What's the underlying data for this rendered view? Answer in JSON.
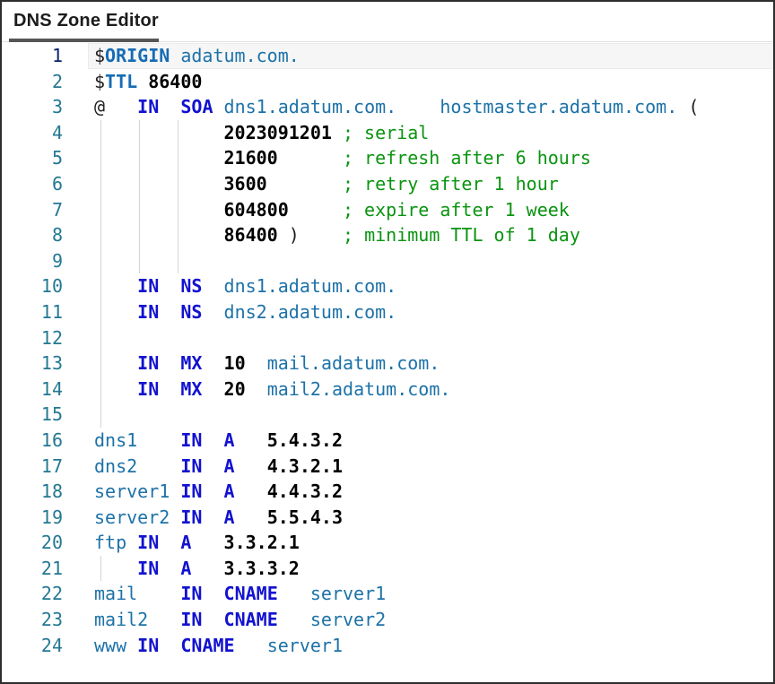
{
  "window": {
    "title": "DNS Zone Editor"
  },
  "colors": {
    "keyword": "#1212d0",
    "directive": "#166cb4",
    "domain": "#1d72a8",
    "number": "#000000",
    "comment": "#0a9410",
    "punct": "#1f1f1f",
    "line_number": "#237893",
    "active_line_number": "#0b216f",
    "indent_guide": "#d4d4d4",
    "tab_indicator": "#565656"
  },
  "editor": {
    "active_line": 1,
    "lines": [
      {
        "n": 1,
        "guides": [],
        "tokens": [
          [
            "$",
            "pun"
          ],
          [
            "ORIGIN",
            "dir"
          ],
          [
            " ",
            ""
          ],
          [
            "adatum.com.",
            "dom"
          ]
        ]
      },
      {
        "n": 2,
        "guides": [],
        "tokens": [
          [
            "$",
            "pun"
          ],
          [
            "TTL",
            "dir"
          ],
          [
            " ",
            ""
          ],
          [
            "86400",
            "num"
          ]
        ]
      },
      {
        "n": 3,
        "guides": [],
        "tokens": [
          [
            "@",
            "pun"
          ],
          [
            "   ",
            ""
          ],
          [
            "IN",
            "kw"
          ],
          [
            "  ",
            ""
          ],
          [
            "SOA",
            "kw"
          ],
          [
            " ",
            ""
          ],
          [
            "dns1.adatum.com.",
            "dom"
          ],
          [
            "    ",
            ""
          ],
          [
            "hostmaster.adatum.com.",
            "dom"
          ],
          [
            " ",
            ""
          ],
          [
            "(",
            "pun"
          ]
        ]
      },
      {
        "n": 4,
        "guides": [
          0,
          4,
          8
        ],
        "tokens": [
          [
            "            ",
            ""
          ],
          [
            "2023091201",
            "num"
          ],
          [
            " ",
            ""
          ],
          [
            "; serial",
            "com"
          ]
        ]
      },
      {
        "n": 5,
        "guides": [
          0,
          4,
          8
        ],
        "tokens": [
          [
            "            ",
            ""
          ],
          [
            "21600",
            "num"
          ],
          [
            "      ",
            ""
          ],
          [
            "; refresh after 6 hours",
            "com"
          ]
        ]
      },
      {
        "n": 6,
        "guides": [
          0,
          4,
          8
        ],
        "tokens": [
          [
            "            ",
            ""
          ],
          [
            "3600",
            "num"
          ],
          [
            "       ",
            ""
          ],
          [
            "; retry after 1 hour",
            "com"
          ]
        ]
      },
      {
        "n": 7,
        "guides": [
          0,
          4,
          8
        ],
        "tokens": [
          [
            "            ",
            ""
          ],
          [
            "604800",
            "num"
          ],
          [
            "     ",
            ""
          ],
          [
            "; expire after 1 week",
            "com"
          ]
        ]
      },
      {
        "n": 8,
        "guides": [
          0,
          4,
          8
        ],
        "tokens": [
          [
            "            ",
            ""
          ],
          [
            "86400",
            "num"
          ],
          [
            " ",
            ""
          ],
          [
            ")",
            "pun"
          ],
          [
            "    ",
            ""
          ],
          [
            "; minimum TTL of 1 day",
            "com"
          ]
        ]
      },
      {
        "n": 9,
        "guides": [
          0,
          4,
          8
        ],
        "tokens": []
      },
      {
        "n": 10,
        "guides": [
          0
        ],
        "tokens": [
          [
            "    ",
            ""
          ],
          [
            "IN",
            "kw"
          ],
          [
            "  ",
            ""
          ],
          [
            "NS",
            "kw"
          ],
          [
            "  ",
            ""
          ],
          [
            "dns1.adatum.com.",
            "dom"
          ]
        ]
      },
      {
        "n": 11,
        "guides": [
          0
        ],
        "tokens": [
          [
            "    ",
            ""
          ],
          [
            "IN",
            "kw"
          ],
          [
            "  ",
            ""
          ],
          [
            "NS",
            "kw"
          ],
          [
            "  ",
            ""
          ],
          [
            "dns2.adatum.com.",
            "dom"
          ]
        ]
      },
      {
        "n": 12,
        "guides": [
          0
        ],
        "tokens": []
      },
      {
        "n": 13,
        "guides": [
          0
        ],
        "tokens": [
          [
            "    ",
            ""
          ],
          [
            "IN",
            "kw"
          ],
          [
            "  ",
            ""
          ],
          [
            "MX",
            "kw"
          ],
          [
            "  ",
            ""
          ],
          [
            "10",
            "num"
          ],
          [
            "  ",
            ""
          ],
          [
            "mail.adatum.com.",
            "dom"
          ]
        ]
      },
      {
        "n": 14,
        "guides": [
          0
        ],
        "tokens": [
          [
            "    ",
            ""
          ],
          [
            "IN",
            "kw"
          ],
          [
            "  ",
            ""
          ],
          [
            "MX",
            "kw"
          ],
          [
            "  ",
            ""
          ],
          [
            "20",
            "num"
          ],
          [
            "  ",
            ""
          ],
          [
            "mail2.adatum.com.",
            "dom"
          ]
        ]
      },
      {
        "n": 15,
        "guides": [
          0
        ],
        "tokens": []
      },
      {
        "n": 16,
        "guides": [],
        "tokens": [
          [
            "dns1",
            "dom"
          ],
          [
            "    ",
            ""
          ],
          [
            "IN",
            "kw"
          ],
          [
            "  ",
            ""
          ],
          [
            "A",
            "kw"
          ],
          [
            "   ",
            ""
          ],
          [
            "5.4.3.2",
            "num"
          ]
        ]
      },
      {
        "n": 17,
        "guides": [],
        "tokens": [
          [
            "dns2",
            "dom"
          ],
          [
            "    ",
            ""
          ],
          [
            "IN",
            "kw"
          ],
          [
            "  ",
            ""
          ],
          [
            "A",
            "kw"
          ],
          [
            "   ",
            ""
          ],
          [
            "4.3.2.1",
            "num"
          ]
        ]
      },
      {
        "n": 18,
        "guides": [],
        "tokens": [
          [
            "server1",
            "dom"
          ],
          [
            " ",
            ""
          ],
          [
            "IN",
            "kw"
          ],
          [
            "  ",
            ""
          ],
          [
            "A",
            "kw"
          ],
          [
            "   ",
            ""
          ],
          [
            "4.4.3.2",
            "num"
          ]
        ]
      },
      {
        "n": 19,
        "guides": [],
        "tokens": [
          [
            "server2",
            "dom"
          ],
          [
            " ",
            ""
          ],
          [
            "IN",
            "kw"
          ],
          [
            "  ",
            ""
          ],
          [
            "A",
            "kw"
          ],
          [
            "   ",
            ""
          ],
          [
            "5.5.4.3",
            "num"
          ]
        ]
      },
      {
        "n": 20,
        "guides": [],
        "tokens": [
          [
            "ftp",
            "dom"
          ],
          [
            " ",
            ""
          ],
          [
            "IN",
            "kw"
          ],
          [
            "  ",
            ""
          ],
          [
            "A",
            "kw"
          ],
          [
            "   ",
            ""
          ],
          [
            "3.3.2.1",
            "num"
          ]
        ]
      },
      {
        "n": 21,
        "guides": [
          0
        ],
        "tokens": [
          [
            "    ",
            ""
          ],
          [
            "IN",
            "kw"
          ],
          [
            "  ",
            ""
          ],
          [
            "A",
            "kw"
          ],
          [
            "   ",
            ""
          ],
          [
            "3.3.3.2",
            "num"
          ]
        ]
      },
      {
        "n": 22,
        "guides": [],
        "tokens": [
          [
            "mail",
            "dom"
          ],
          [
            "    ",
            ""
          ],
          [
            "IN",
            "kw"
          ],
          [
            "  ",
            ""
          ],
          [
            "CNAME",
            "kw"
          ],
          [
            "   ",
            ""
          ],
          [
            "server1",
            "dom"
          ]
        ]
      },
      {
        "n": 23,
        "guides": [],
        "tokens": [
          [
            "mail2",
            "dom"
          ],
          [
            "   ",
            ""
          ],
          [
            "IN",
            "kw"
          ],
          [
            "  ",
            ""
          ],
          [
            "CNAME",
            "kw"
          ],
          [
            "   ",
            ""
          ],
          [
            "server2",
            "dom"
          ]
        ]
      },
      {
        "n": 24,
        "guides": [],
        "tokens": [
          [
            "www",
            "dom"
          ],
          [
            " ",
            ""
          ],
          [
            "IN",
            "kw"
          ],
          [
            "  ",
            ""
          ],
          [
            "CNAME",
            "kw"
          ],
          [
            "   ",
            ""
          ],
          [
            "server1",
            "dom"
          ]
        ]
      }
    ]
  }
}
